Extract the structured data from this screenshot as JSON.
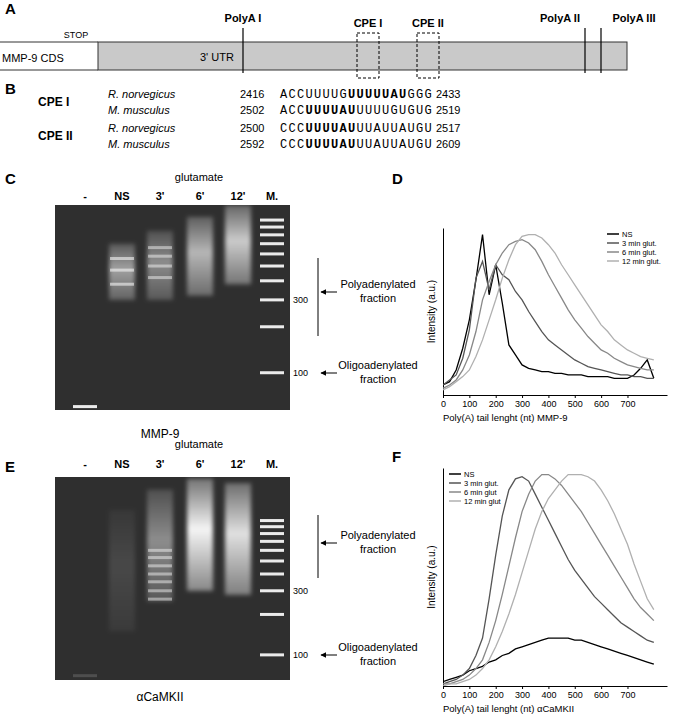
{
  "panel_labels": [
    "A",
    "B",
    "C",
    "D",
    "E",
    "F"
  ],
  "gene_diagram": {
    "cds_label": "MMP-9 CDS",
    "stop_label": "STOP",
    "utr_label": "3' UTR",
    "polyA_sites": [
      "PolyA I",
      "PolyA II",
      "PolyA III"
    ],
    "cpe_sites": [
      "CPE I",
      "CPE II"
    ]
  },
  "alignment": {
    "groups": [
      {
        "label": "CPE I",
        "rows": [
          {
            "species": "R. norvegicus",
            "start": 2416,
            "pre": "ACCUUUUG",
            "core": "UUUUUAU",
            "post": "GGG",
            "end": 2433
          },
          {
            "species": "M. musculus",
            "start": 2502,
            "pre": "ACC",
            "core": "UUUUAU",
            "post": "UUUUGUGUG",
            "end": 2519
          }
        ]
      },
      {
        "label": "CPE II",
        "rows": [
          {
            "species": "R. norvegicus",
            "start": 2500,
            "pre": "CCC",
            "core": "UUUUAU",
            "post": "UUAUUAUGU",
            "end": 2517
          },
          {
            "species": "M. musculus",
            "start": 2592,
            "pre": "CCC",
            "core": "UUUUAU",
            "post": "UUAUUAUGU",
            "end": 2609
          }
        ]
      }
    ]
  },
  "gels": [
    {
      "treatment": "glutamate",
      "label": "MMP-9",
      "nt_range": [
        57,
        1255
      ],
      "marker_ticks": [
        300,
        100
      ],
      "fractions": [
        "Polyadenylated fraction",
        "Oligoadenylated fraction"
      ],
      "lanes": [
        {
          "name": "-",
          "bands": [
            60
          ],
          "smear": null,
          "signal": 0.9
        },
        {
          "name": "NS",
          "bands": [
            380,
            470,
            560
          ],
          "smear": [
            300,
            700
          ],
          "signal": 0.55
        },
        {
          "name": "3'",
          "bands": [
            420,
            500,
            580,
            660
          ],
          "smear": [
            300,
            850
          ],
          "signal": 0.45
        },
        {
          "name": "6'",
          "bands": [],
          "smear": [
            320,
            1050
          ],
          "signal": 0.65
        },
        {
          "name": "12'",
          "bands": [],
          "smear": [
            380,
            1250
          ],
          "signal": 0.75
        },
        {
          "name": "M.",
          "bands": [
            100,
            200,
            300,
            400,
            500,
            600,
            700,
            800,
            900,
            1000
          ],
          "smear": null,
          "signal": 0.9
        }
      ]
    },
    {
      "treatment": "glutamate",
      "label": "αCaMKII",
      "nt_range": [
        65,
        2110
      ],
      "marker_ticks": [
        300,
        100
      ],
      "fractions": [
        "Polyadenylated fraction",
        "Oligoadenylated fraction"
      ],
      "lanes": [
        {
          "name": "-",
          "bands": [
            70
          ],
          "smear": null,
          "signal": 0.15
        },
        {
          "name": "NS",
          "bands": [],
          "smear": [
            150,
            1200
          ],
          "signal": 0.12
        },
        {
          "name": "3'",
          "bands": [
            260,
            300,
            350,
            400,
            460,
            530,
            600
          ],
          "smear": [
            250,
            1700
          ],
          "signal": 0.45
        },
        {
          "name": "6'",
          "bands": [],
          "smear": [
            300,
            2050
          ],
          "signal": 0.95
        },
        {
          "name": "12'",
          "bands": [],
          "smear": [
            280,
            1900
          ],
          "signal": 0.85
        },
        {
          "name": "M.",
          "bands": [
            100,
            200,
            300,
            400,
            500,
            600,
            700,
            800,
            900,
            1000
          ],
          "smear": null,
          "signal": 0.9
        }
      ]
    }
  ],
  "chart_data": [
    {
      "type": "line",
      "xlabel": "Poly(A) tail lenght (nt) MMP-9",
      "ylabel": "Intensity (a.u.)",
      "x": [
        0,
        25,
        50,
        75,
        100,
        125,
        150,
        175,
        200,
        225,
        250,
        275,
        300,
        325,
        350,
        375,
        400,
        425,
        450,
        475,
        500,
        525,
        550,
        575,
        600,
        625,
        650,
        675,
        700,
        725,
        750,
        775,
        800
      ],
      "xlim": [
        0,
        850
      ],
      "xticks": [
        0,
        100,
        200,
        300,
        400,
        500,
        600,
        700
      ],
      "ylim": [
        0,
        100
      ],
      "tick_labels": "x",
      "legend": "upper right",
      "series": [
        {
          "name": "NS",
          "color": "#000000",
          "values": [
            6,
            8,
            15,
            28,
            45,
            69,
            96,
            60,
            78,
            55,
            30,
            24,
            18,
            16,
            15,
            14,
            14,
            13,
            13,
            12,
            12,
            12,
            11,
            11,
            11,
            11,
            10,
            10,
            10,
            12,
            16,
            21,
            10
          ]
        },
        {
          "name": "3 min glut.",
          "color": "#555555",
          "values": [
            6,
            9,
            12,
            22,
            39,
            70,
            80,
            63,
            78,
            72,
            69,
            62,
            57,
            50,
            44,
            38,
            33,
            30,
            27,
            24,
            21,
            19,
            17,
            16,
            15,
            14,
            13,
            12,
            12,
            11,
            11,
            10,
            10
          ]
        },
        {
          "name": "6 min glut.",
          "color": "#888888",
          "values": [
            4,
            6,
            9,
            15,
            24,
            38,
            57,
            68,
            78,
            85,
            90,
            92,
            93,
            91,
            87,
            80,
            72,
            65,
            58,
            51,
            45,
            40,
            35,
            31,
            27,
            25,
            22,
            20,
            18,
            17,
            16,
            15,
            15
          ]
        },
        {
          "name": "12 min glut.",
          "color": "#b0b0b0",
          "values": [
            3,
            5,
            8,
            11,
            15,
            23,
            33,
            45,
            57,
            70,
            81,
            90,
            95,
            96,
            96,
            94,
            90,
            85,
            78,
            72,
            66,
            60,
            54,
            48,
            42,
            38,
            33,
            30,
            27,
            25,
            23,
            22,
            21
          ]
        }
      ]
    },
    {
      "type": "line",
      "xlabel": "Poly(A) tail lenght (nt) αCaMKII",
      "ylabel": "Intensity (a.u.)",
      "x": [
        0,
        25,
        50,
        75,
        100,
        125,
        150,
        175,
        200,
        225,
        250,
        275,
        300,
        325,
        350,
        375,
        400,
        425,
        450,
        475,
        500,
        525,
        550,
        575,
        600,
        625,
        650,
        675,
        700,
        725,
        750,
        775,
        800
      ],
      "xlim": [
        0,
        850
      ],
      "xticks": [
        0,
        100,
        200,
        300,
        400,
        500,
        600,
        700
      ],
      "ylim": [
        0,
        100
      ],
      "tick_labels": "x",
      "legend": "upper left",
      "series": [
        {
          "name": "NS",
          "color": "#000000",
          "values": [
            2,
            3,
            4,
            5,
            7,
            8,
            9,
            11,
            12,
            14,
            15,
            17,
            18,
            19,
            20,
            21,
            22,
            22,
            22,
            22,
            21,
            21,
            20,
            19,
            18,
            17,
            16,
            15,
            14,
            13,
            12,
            11,
            10
          ]
        },
        {
          "name": "3 min glut.",
          "color": "#555555",
          "values": [
            1,
            2,
            3,
            5,
            8,
            14,
            22,
            40,
            60,
            78,
            90,
            95,
            96,
            94,
            88,
            82,
            76,
            70,
            64,
            58,
            53,
            49,
            45,
            41,
            38,
            35,
            32,
            29,
            27,
            25,
            23,
            21,
            20
          ]
        },
        {
          "name": "6 min glut",
          "color": "#888888",
          "values": [
            1,
            1,
            2,
            3,
            5,
            8,
            12,
            20,
            30,
            42,
            55,
            68,
            80,
            88,
            94,
            97,
            97,
            95,
            92,
            88,
            84,
            80,
            75,
            70,
            65,
            60,
            55,
            50,
            45,
            40,
            36,
            33,
            30
          ]
        },
        {
          "name": "12 min glut",
          "color": "#b0b0b0",
          "values": [
            0,
            1,
            1,
            2,
            3,
            5,
            8,
            12,
            18,
            25,
            33,
            42,
            52,
            62,
            72,
            80,
            86,
            90,
            94,
            97,
            97,
            97,
            96,
            94,
            90,
            85,
            79,
            72,
            65,
            56,
            48,
            40,
            35
          ]
        }
      ]
    }
  ]
}
